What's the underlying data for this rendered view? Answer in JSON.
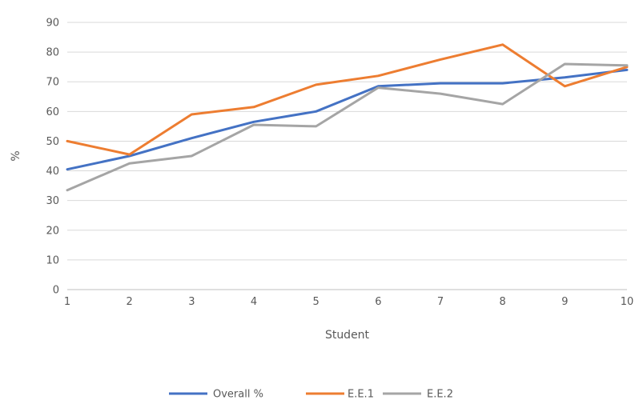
{
  "chart_data": {
    "type": "line",
    "title": "",
    "xlabel": "Student",
    "ylabel": "%",
    "x": [
      1,
      2,
      3,
      4,
      5,
      6,
      7,
      8,
      9,
      10
    ],
    "ylim": [
      0,
      90
    ],
    "yticks": [
      0,
      10,
      20,
      30,
      40,
      50,
      60,
      70,
      80,
      90
    ],
    "grid": true,
    "legend_position": "bottom",
    "series": [
      {
        "name": "Overall %",
        "color": "#4472C4",
        "values": [
          40.5,
          45,
          51,
          56.5,
          60,
          68.5,
          69.5,
          69.5,
          71.5,
          74
        ]
      },
      {
        "name": "E.E.1",
        "color": "#ED7D31",
        "values": [
          50,
          45.5,
          59,
          61.5,
          69,
          72,
          77.5,
          82.5,
          68.5,
          75
        ]
      },
      {
        "name": "E.E.2",
        "color": "#A5A5A5",
        "values": [
          33.5,
          42.5,
          45,
          55.5,
          55,
          68,
          66,
          62.5,
          76,
          75.5
        ]
      }
    ]
  }
}
